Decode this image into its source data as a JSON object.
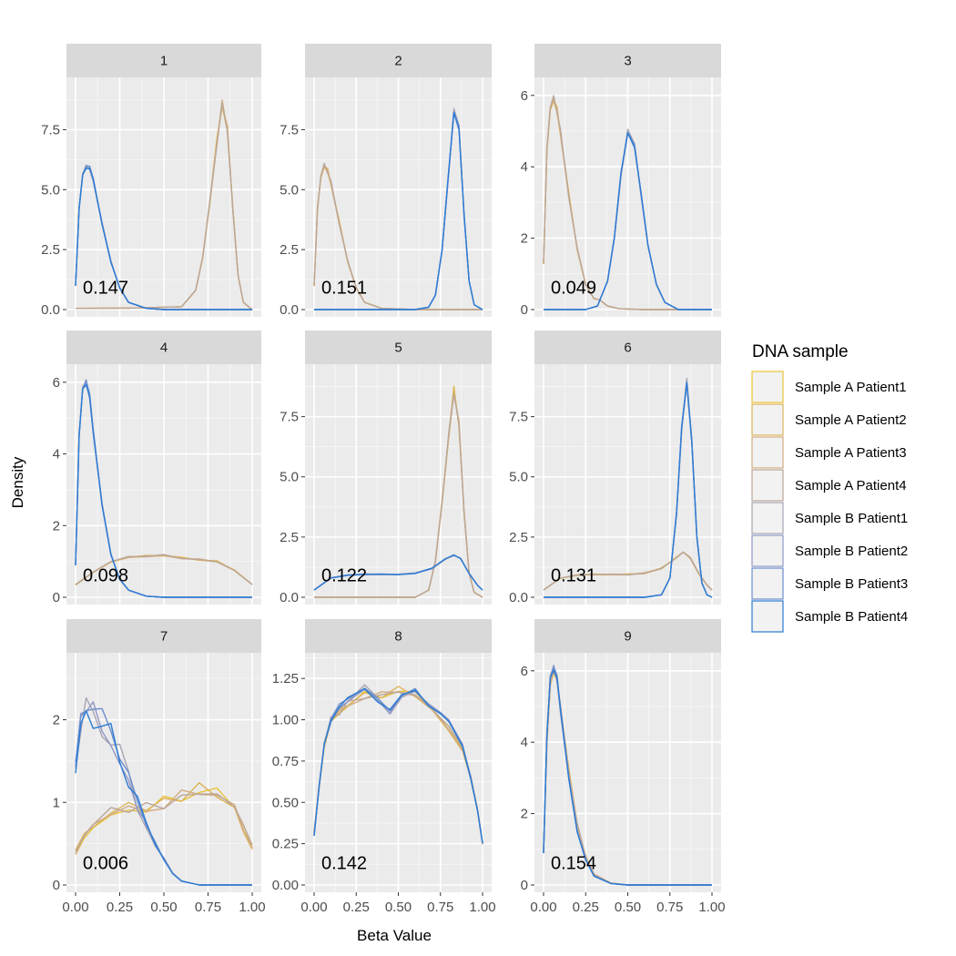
{
  "chart_data": {
    "type": "line",
    "subtype": "faceted density",
    "xlabel": "Beta Value",
    "ylabel": "Density",
    "x_ticks": [
      "0.00",
      "0.25",
      "0.50",
      "0.75",
      "1.00"
    ],
    "xlim": [
      0,
      1
    ],
    "legend": {
      "title": "DNA sample",
      "position": "right",
      "entries": [
        {
          "name": "Sample A Patient1",
          "color": "#E8C33A"
        },
        {
          "name": "Sample A Patient2",
          "color": "#DDB45A"
        },
        {
          "name": "Sample A Patient3",
          "color": "#D1AC80"
        },
        {
          "name": "Sample A Patient4",
          "color": "#BBA69A"
        },
        {
          "name": "Sample B Patient1",
          "color": "#A8A4B4"
        },
        {
          "name": "Sample B Patient2",
          "color": "#8F98C4"
        },
        {
          "name": "Sample B Patient3",
          "color": "#6A8ECC"
        },
        {
          "name": "Sample B Patient4",
          "color": "#2C7BD4"
        }
      ]
    },
    "facets": [
      {
        "label": "1",
        "annotation": "0.147",
        "ylim": [
          0,
          9.3
        ],
        "y_ticks": [
          0,
          2.5,
          5,
          7.5
        ],
        "y_tick_labels": [
          "0.0",
          "2.5",
          "5.0",
          "7.5"
        ],
        "group_a": [
          [
            0.0,
            0.05
          ],
          [
            0.3,
            0.06
          ],
          [
            0.6,
            0.12
          ],
          [
            0.68,
            0.8
          ],
          [
            0.72,
            2.2
          ],
          [
            0.76,
            4.5
          ],
          [
            0.8,
            7.0
          ],
          [
            0.83,
            8.6
          ],
          [
            0.86,
            7.5
          ],
          [
            0.89,
            4.2
          ],
          [
            0.92,
            1.4
          ],
          [
            0.95,
            0.3
          ],
          [
            1.0,
            0.0
          ]
        ],
        "group_b": [
          [
            0.0,
            1.0
          ],
          [
            0.02,
            4.2
          ],
          [
            0.04,
            5.6
          ],
          [
            0.06,
            5.95
          ],
          [
            0.08,
            5.9
          ],
          [
            0.1,
            5.4
          ],
          [
            0.15,
            3.6
          ],
          [
            0.2,
            2.0
          ],
          [
            0.25,
            0.9
          ],
          [
            0.3,
            0.3
          ],
          [
            0.4,
            0.05
          ],
          [
            0.5,
            0.0
          ],
          [
            1.0,
            0.0
          ]
        ]
      },
      {
        "label": "2",
        "annotation": "0.151",
        "ylim": [
          0,
          9.3
        ],
        "y_ticks": [
          0,
          2.5,
          5,
          7.5
        ],
        "y_tick_labels": [
          "0.0",
          "2.5",
          "5.0",
          "7.5"
        ],
        "group_a": [
          [
            0.0,
            1.0
          ],
          [
            0.02,
            4.2
          ],
          [
            0.04,
            5.6
          ],
          [
            0.06,
            6.0
          ],
          [
            0.08,
            5.8
          ],
          [
            0.1,
            5.3
          ],
          [
            0.15,
            3.6
          ],
          [
            0.2,
            2.0
          ],
          [
            0.25,
            0.9
          ],
          [
            0.3,
            0.3
          ],
          [
            0.4,
            0.05
          ],
          [
            0.6,
            0.0
          ],
          [
            1.0,
            0.0
          ]
        ],
        "group_b": [
          [
            0.0,
            0.0
          ],
          [
            0.6,
            0.0
          ],
          [
            0.68,
            0.1
          ],
          [
            0.72,
            0.6
          ],
          [
            0.76,
            2.5
          ],
          [
            0.8,
            5.8
          ],
          [
            0.83,
            8.3
          ],
          [
            0.86,
            7.6
          ],
          [
            0.89,
            4.0
          ],
          [
            0.92,
            1.2
          ],
          [
            0.95,
            0.2
          ],
          [
            1.0,
            0.0
          ]
        ]
      },
      {
        "label": "3",
        "annotation": "0.049",
        "ylim": [
          0,
          6.25
        ],
        "y_ticks": [
          0,
          2,
          4,
          6
        ],
        "y_tick_labels": [
          "0",
          "2",
          "4",
          "6"
        ],
        "group_a": [
          [
            0.0,
            1.3
          ],
          [
            0.02,
            4.5
          ],
          [
            0.04,
            5.7
          ],
          [
            0.06,
            5.9
          ],
          [
            0.08,
            5.6
          ],
          [
            0.1,
            5.0
          ],
          [
            0.15,
            3.2
          ],
          [
            0.2,
            1.7
          ],
          [
            0.25,
            0.7
          ],
          [
            0.3,
            0.3
          ],
          [
            0.33,
            0.28
          ],
          [
            0.38,
            0.1
          ],
          [
            0.45,
            0.02
          ],
          [
            0.6,
            0.0
          ],
          [
            1.0,
            0.0
          ]
        ],
        "group_b": [
          [
            0.0,
            0.0
          ],
          [
            0.25,
            0.0
          ],
          [
            0.32,
            0.1
          ],
          [
            0.38,
            0.8
          ],
          [
            0.42,
            2.0
          ],
          [
            0.46,
            3.8
          ],
          [
            0.5,
            5.0
          ],
          [
            0.54,
            4.6
          ],
          [
            0.58,
            3.2
          ],
          [
            0.62,
            1.8
          ],
          [
            0.67,
            0.7
          ],
          [
            0.72,
            0.2
          ],
          [
            0.8,
            0.0
          ],
          [
            1.0,
            0.0
          ]
        ]
      },
      {
        "label": "4",
        "annotation": "0.098",
        "ylim": [
          0,
          6.25
        ],
        "y_ticks": [
          0,
          2,
          4,
          6
        ],
        "y_tick_labels": [
          "0",
          "2",
          "4",
          "6"
        ],
        "group_a": [
          [
            0.0,
            0.35
          ],
          [
            0.1,
            0.7
          ],
          [
            0.2,
            1.0
          ],
          [
            0.3,
            1.12
          ],
          [
            0.4,
            1.15
          ],
          [
            0.5,
            1.18
          ],
          [
            0.6,
            1.1
          ],
          [
            0.7,
            1.05
          ],
          [
            0.8,
            1.0
          ],
          [
            0.9,
            0.75
          ],
          [
            1.0,
            0.35
          ]
        ],
        "group_b": [
          [
            0.0,
            0.9
          ],
          [
            0.02,
            4.5
          ],
          [
            0.04,
            5.8
          ],
          [
            0.06,
            6.0
          ],
          [
            0.08,
            5.6
          ],
          [
            0.1,
            4.6
          ],
          [
            0.15,
            2.6
          ],
          [
            0.2,
            1.2
          ],
          [
            0.25,
            0.5
          ],
          [
            0.3,
            0.2
          ],
          [
            0.4,
            0.03
          ],
          [
            0.5,
            0.0
          ],
          [
            1.0,
            0.0
          ]
        ]
      },
      {
        "label": "5",
        "annotation": "0.122",
        "ylim": [
          0,
          9.3
        ],
        "y_ticks": [
          0,
          2.5,
          5,
          7.5
        ],
        "y_tick_labels": [
          "0.0",
          "2.5",
          "5.0",
          "7.5"
        ],
        "group_a": [
          [
            0.0,
            0.0
          ],
          [
            0.6,
            0.0
          ],
          [
            0.68,
            0.3
          ],
          [
            0.72,
            1.5
          ],
          [
            0.76,
            4.0
          ],
          [
            0.8,
            6.8
          ],
          [
            0.83,
            8.6
          ],
          [
            0.86,
            7.2
          ],
          [
            0.89,
            3.6
          ],
          [
            0.92,
            1.0
          ],
          [
            0.95,
            0.2
          ],
          [
            1.0,
            0.0
          ]
        ],
        "group_b": [
          [
            0.0,
            0.3
          ],
          [
            0.05,
            0.55
          ],
          [
            0.1,
            0.8
          ],
          [
            0.2,
            0.92
          ],
          [
            0.3,
            0.95
          ],
          [
            0.4,
            0.95
          ],
          [
            0.5,
            0.95
          ],
          [
            0.6,
            1.0
          ],
          [
            0.7,
            1.2
          ],
          [
            0.78,
            1.6
          ],
          [
            0.83,
            1.75
          ],
          [
            0.87,
            1.6
          ],
          [
            0.92,
            1.0
          ],
          [
            0.97,
            0.5
          ],
          [
            1.0,
            0.3
          ]
        ]
      },
      {
        "label": "6",
        "annotation": "0.131",
        "ylim": [
          0,
          9.3
        ],
        "y_ticks": [
          0,
          2.5,
          5,
          7.5
        ],
        "y_tick_labels": [
          "0.0",
          "2.5",
          "5.0",
          "7.5"
        ],
        "group_a": [
          [
            0.0,
            0.3
          ],
          [
            0.05,
            0.55
          ],
          [
            0.1,
            0.8
          ],
          [
            0.2,
            0.92
          ],
          [
            0.3,
            0.95
          ],
          [
            0.4,
            0.95
          ],
          [
            0.5,
            0.95
          ],
          [
            0.6,
            1.0
          ],
          [
            0.7,
            1.2
          ],
          [
            0.78,
            1.6
          ],
          [
            0.83,
            1.85
          ],
          [
            0.87,
            1.65
          ],
          [
            0.92,
            1.0
          ],
          [
            0.97,
            0.5
          ],
          [
            1.0,
            0.3
          ]
        ],
        "group_b": [
          [
            0.0,
            0.0
          ],
          [
            0.6,
            0.0
          ],
          [
            0.7,
            0.1
          ],
          [
            0.75,
            0.8
          ],
          [
            0.79,
            3.5
          ],
          [
            0.82,
            7.0
          ],
          [
            0.85,
            9.0
          ],
          [
            0.88,
            6.5
          ],
          [
            0.91,
            2.5
          ],
          [
            0.94,
            0.6
          ],
          [
            0.97,
            0.1
          ],
          [
            1.0,
            0.0
          ]
        ]
      },
      {
        "label": "7",
        "annotation": "0.006",
        "ylim": [
          0,
          2.7
        ],
        "y_ticks": [
          0,
          1,
          2
        ],
        "y_tick_labels": [
          "0",
          "1",
          "2"
        ],
        "group_a": [
          [
            0.0,
            0.4
          ],
          [
            0.05,
            0.6
          ],
          [
            0.1,
            0.75
          ],
          [
            0.2,
            0.88
          ],
          [
            0.3,
            0.95
          ],
          [
            0.4,
            0.95
          ],
          [
            0.5,
            1.0
          ],
          [
            0.6,
            1.08
          ],
          [
            0.7,
            1.15
          ],
          [
            0.8,
            1.1
          ],
          [
            0.9,
            0.9
          ],
          [
            0.95,
            0.7
          ],
          [
            1.0,
            0.45
          ]
        ],
        "group_b": [
          [
            0.0,
            1.45
          ],
          [
            0.03,
            1.95
          ],
          [
            0.06,
            2.08
          ],
          [
            0.1,
            2.05
          ],
          [
            0.15,
            1.95
          ],
          [
            0.2,
            1.8
          ],
          [
            0.25,
            1.6
          ],
          [
            0.3,
            1.3
          ],
          [
            0.35,
            1.0
          ],
          [
            0.4,
            0.75
          ],
          [
            0.45,
            0.5
          ],
          [
            0.5,
            0.3
          ],
          [
            0.55,
            0.15
          ],
          [
            0.6,
            0.05
          ],
          [
            0.7,
            0.0
          ],
          [
            1.0,
            0.0
          ]
        ]
      },
      {
        "label": "8",
        "annotation": "0.142",
        "ylim": [
          0,
          1.35
        ],
        "y_ticks": [
          0,
          0.25,
          0.5,
          0.75,
          1,
          1.25
        ],
        "y_tick_labels": [
          "0.00",
          "0.25",
          "0.50",
          "0.75",
          "1.00",
          "1.25"
        ],
        "group_a": [
          [
            0.0,
            0.32
          ],
          [
            0.03,
            0.6
          ],
          [
            0.06,
            0.85
          ],
          [
            0.1,
            1.0
          ],
          [
            0.15,
            1.05
          ],
          [
            0.2,
            1.1
          ],
          [
            0.3,
            1.15
          ],
          [
            0.4,
            1.15
          ],
          [
            0.5,
            1.18
          ],
          [
            0.6,
            1.15
          ],
          [
            0.7,
            1.05
          ],
          [
            0.8,
            0.95
          ],
          [
            0.88,
            0.82
          ],
          [
            0.93,
            0.65
          ],
          [
            0.97,
            0.45
          ],
          [
            1.0,
            0.25
          ]
        ],
        "group_b": [
          [
            0.0,
            0.3
          ],
          [
            0.03,
            0.6
          ],
          [
            0.06,
            0.85
          ],
          [
            0.1,
            1.0
          ],
          [
            0.15,
            1.08
          ],
          [
            0.2,
            1.12
          ],
          [
            0.3,
            1.2
          ],
          [
            0.38,
            1.12
          ],
          [
            0.45,
            1.05
          ],
          [
            0.52,
            1.15
          ],
          [
            0.6,
            1.18
          ],
          [
            0.68,
            1.08
          ],
          [
            0.75,
            1.05
          ],
          [
            0.8,
            1.0
          ],
          [
            0.88,
            0.85
          ],
          [
            0.93,
            0.65
          ],
          [
            0.97,
            0.45
          ],
          [
            1.0,
            0.25
          ]
        ]
      },
      {
        "label": "9",
        "annotation": "0.154",
        "ylim": [
          0,
          6.25
        ],
        "y_ticks": [
          0,
          2,
          4,
          6
        ],
        "y_tick_labels": [
          "0",
          "2",
          "4",
          "6"
        ],
        "group_a": [
          [
            0.0,
            1.0
          ],
          [
            0.02,
            4.0
          ],
          [
            0.04,
            5.7
          ],
          [
            0.06,
            6.0
          ],
          [
            0.08,
            5.8
          ],
          [
            0.1,
            5.0
          ],
          [
            0.15,
            3.2
          ],
          [
            0.2,
            1.7
          ],
          [
            0.25,
            0.8
          ],
          [
            0.3,
            0.3
          ],
          [
            0.4,
            0.05
          ],
          [
            0.5,
            0.0
          ],
          [
            1.0,
            0.0
          ]
        ],
        "group_b": [
          [
            0.0,
            0.9
          ],
          [
            0.02,
            4.2
          ],
          [
            0.04,
            5.8
          ],
          [
            0.06,
            6.08
          ],
          [
            0.08,
            5.8
          ],
          [
            0.1,
            4.9
          ],
          [
            0.15,
            3.0
          ],
          [
            0.2,
            1.5
          ],
          [
            0.25,
            0.7
          ],
          [
            0.3,
            0.25
          ],
          [
            0.4,
            0.04
          ],
          [
            0.5,
            0.0
          ],
          [
            1.0,
            0.0
          ]
        ]
      }
    ]
  }
}
